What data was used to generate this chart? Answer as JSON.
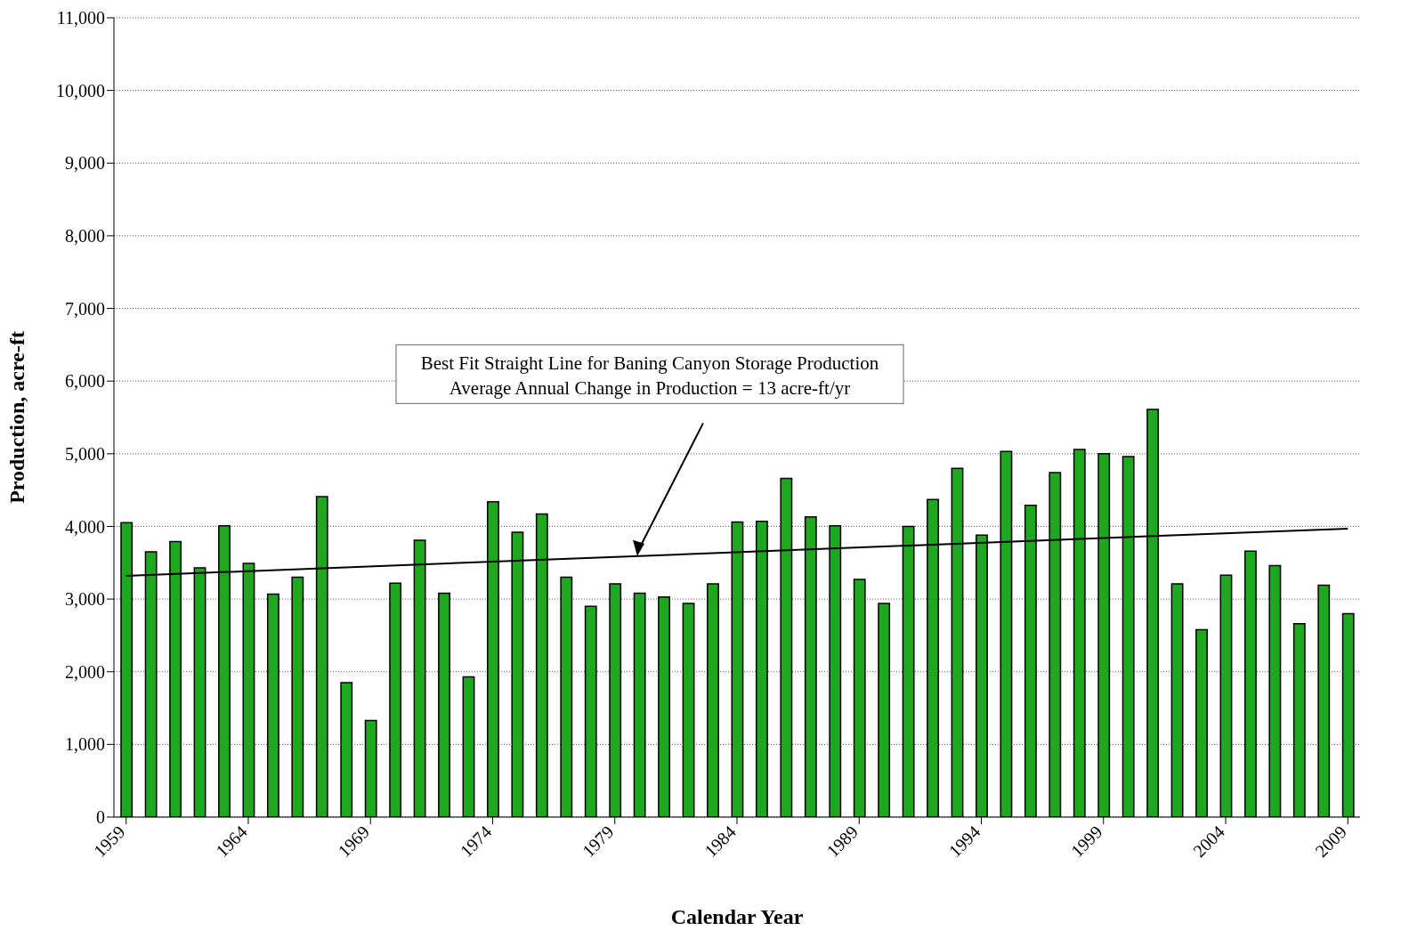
{
  "chart_data": {
    "type": "bar",
    "xlabel": "Calendar Year",
    "ylabel": "Production, acre-ft",
    "x": [
      1959,
      1960,
      1961,
      1962,
      1963,
      1964,
      1965,
      1966,
      1967,
      1968,
      1969,
      1970,
      1971,
      1972,
      1973,
      1974,
      1975,
      1976,
      1977,
      1978,
      1979,
      1980,
      1981,
      1982,
      1983,
      1984,
      1985,
      1986,
      1987,
      1988,
      1989,
      1990,
      1991,
      1992,
      1993,
      1994,
      1995,
      1996,
      1997,
      1998,
      1999,
      2000,
      2001,
      2002,
      2003,
      2004,
      2005,
      2006,
      2007,
      2008,
      2009
    ],
    "series": [
      {
        "color": "#1fa81f",
        "values": [
          4050,
          3650,
          3790,
          3430,
          4010,
          3490,
          3070,
          3300,
          4410,
          1850,
          1330,
          3220,
          3810,
          3080,
          1930,
          4340,
          3920,
          4170,
          3300,
          2900,
          3210,
          3080,
          3030,
          2940,
          3210,
          4060,
          4070,
          4660,
          4130,
          4010,
          3270,
          2940,
          4000,
          4370,
          4800,
          3880,
          5030,
          4290,
          4740,
          5060,
          5000,
          4960,
          5610,
          3210,
          2580,
          3330,
          3660,
          3460,
          2660,
          3190,
          2800
        ]
      },
      {
        "type": "line",
        "color": "#000000",
        "x": [
          1959,
          2009
        ],
        "values": [
          3320,
          3970
        ]
      }
    ],
    "xlim": [
      1958.5,
      2009.5
    ],
    "xticks": [
      1959,
      1964,
      1969,
      1974,
      1979,
      1984,
      1989,
      1994,
      1999,
      2004,
      2009
    ],
    "ylim": [
      0,
      11000
    ],
    "yticks": [
      0,
      {
        "value": 1000,
        "label": "1,000"
      },
      {
        "value": 2000,
        "label": "2,000"
      },
      {
        "value": 3000,
        "label": "3,000"
      },
      {
        "value": 4000,
        "label": "4,000"
      },
      {
        "value": 5000,
        "label": "5,000"
      },
      {
        "value": 6000,
        "label": "6,000"
      },
      {
        "value": 7000,
        "label": "7,000"
      },
      {
        "value": 8000,
        "label": "8,000"
      },
      {
        "value": 9000,
        "label": "9,000"
      },
      {
        "value": 10000,
        "label": "10,000"
      },
      {
        "value": 11000,
        "label": "11,000"
      }
    ],
    "grid": "y",
    "legend": false,
    "annotations": [
      "Best Fit Straight Line for Baning Canyon Storage Production",
      "Average Annual Change in Production = 13 acre-ft/yr"
    ]
  }
}
